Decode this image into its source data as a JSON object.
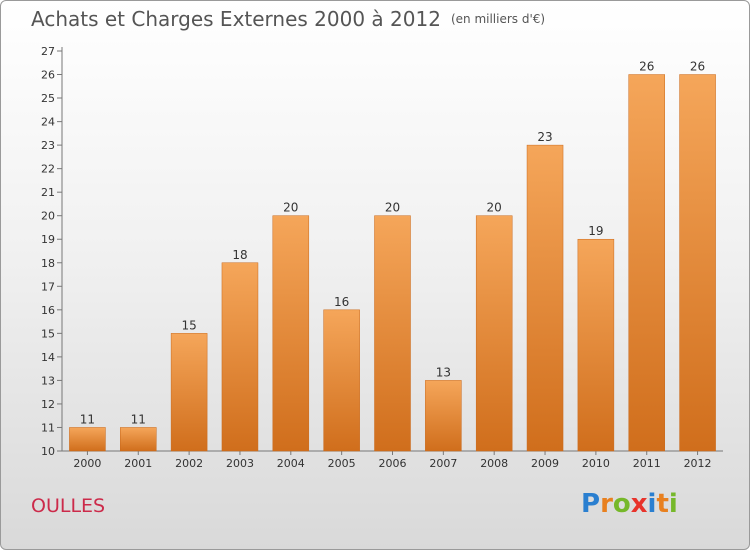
{
  "title": "Achats et Charges Externes 2000 à 2012",
  "subtitle": "(en milliers d'€)",
  "commune": "OULLES",
  "logo": {
    "letters": [
      "P",
      "r",
      "o",
      "x",
      "i",
      "t",
      "i"
    ],
    "colors": [
      "#2a7fd0",
      "#e8801f",
      "#76b82a",
      "#e8332b",
      "#2a7fd0",
      "#e8801f",
      "#76b82a"
    ]
  },
  "chart_data": {
    "type": "bar",
    "categories": [
      "2000",
      "2001",
      "2002",
      "2003",
      "2004",
      "2005",
      "2006",
      "2007",
      "2008",
      "2009",
      "2010",
      "2011",
      "2012"
    ],
    "values": [
      11,
      11,
      15,
      18,
      20,
      16,
      20,
      13,
      20,
      23,
      19,
      26,
      26
    ],
    "ylim": [
      10,
      27
    ],
    "yticks": [
      10,
      11,
      12,
      13,
      14,
      15,
      16,
      17,
      18,
      19,
      20,
      21,
      22,
      23,
      24,
      25,
      26,
      27
    ],
    "grid": false,
    "bar_color_top": "#f5a65a",
    "bar_color_bottom": "#d06e1c"
  }
}
